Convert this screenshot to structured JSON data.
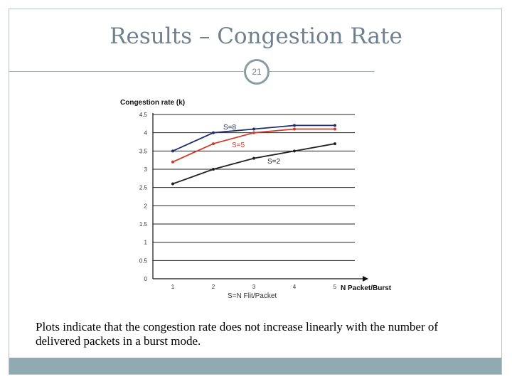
{
  "slide": {
    "title": "Results – Congestion Rate",
    "number": "21",
    "caption": "Plots indicate that the congestion rate does not increase linearly with the number of delivered packets in a burst mode."
  },
  "colors": {
    "title": "#6f8190",
    "footer": "#8faab3",
    "s8": "#1f2f6e",
    "s5": "#d23a2a",
    "s2": "#222222"
  },
  "chart_data": {
    "type": "line",
    "ylabel": "Congestion rate (k)",
    "xlabel": "N Packet/Burst",
    "xsublabel": "S=N Flit/Packet",
    "categories": [
      "1",
      "2",
      "3",
      "4",
      "5"
    ],
    "yticks": [
      "0",
      "0.5",
      "1",
      "1.5",
      "2",
      "2.5",
      "3",
      "3.5",
      "4",
      "4.5"
    ],
    "ylim": [
      0,
      4.5
    ],
    "series": [
      {
        "name": "S=8",
        "values": [
          3.5,
          4.0,
          4.1,
          4.2,
          4.2
        ],
        "color": "#1f2f6e"
      },
      {
        "name": "S=5",
        "values": [
          3.2,
          3.7,
          4.0,
          4.1,
          4.1
        ],
        "color": "#d23a2a"
      },
      {
        "name": "S=2",
        "values": [
          2.6,
          3.0,
          3.3,
          3.5,
          3.7
        ],
        "color": "#222222"
      }
    ]
  }
}
